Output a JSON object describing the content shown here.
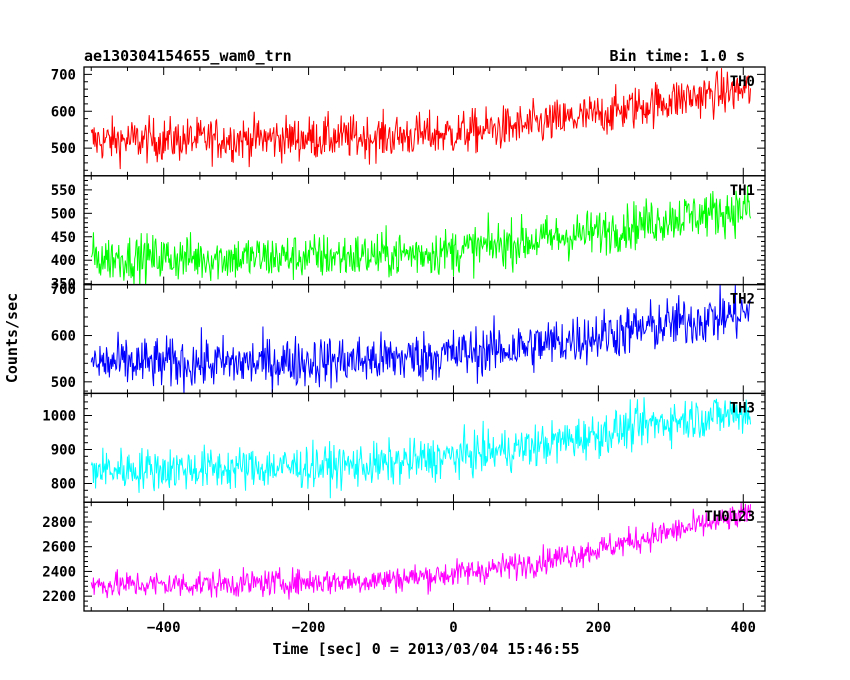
{
  "chart_data": {
    "type": "line",
    "title": "ae130304154655_wam0_trn",
    "subtitle": "Bin time: 1.0 s",
    "xlabel": "Time [sec] 0 = 2013/03/04 15:46:55",
    "ylabel": "Counts/sec",
    "xlim": [
      -510,
      430
    ],
    "xticks": [
      -400,
      -200,
      0,
      200,
      400
    ],
    "x_start": -500,
    "x_end": 410,
    "panels": [
      {
        "name": "TH0",
        "color": "#ff0000",
        "ylim": [
          425,
          720
        ],
        "yticks": [
          500,
          600,
          700
        ],
        "trend_x": [
          -500,
          -300,
          -100,
          0,
          100,
          200,
          300,
          410
        ],
        "trend_y": [
          520,
          525,
          530,
          540,
          560,
          590,
          630,
          660
        ],
        "noise": 30
      },
      {
        "name": "TH1",
        "color": "#00ff00",
        "ylim": [
          348,
          580
        ],
        "yticks": [
          350,
          400,
          450,
          500,
          550
        ],
        "trend_x": [
          -500,
          -300,
          -100,
          0,
          100,
          200,
          300,
          410
        ],
        "trend_y": [
          405,
          405,
          410,
          420,
          440,
          460,
          490,
          510
        ],
        "noise": 25
      },
      {
        "name": "TH2",
        "color": "#0000ff",
        "ylim": [
          475,
          710
        ],
        "yticks": [
          500,
          600,
          700
        ],
        "trend_x": [
          -500,
          -300,
          -100,
          0,
          100,
          200,
          300,
          410
        ],
        "trend_y": [
          540,
          540,
          548,
          560,
          575,
          600,
          625,
          650
        ],
        "noise": 28
      },
      {
        "name": "TH3",
        "color": "#00ffff",
        "ylim": [
          745,
          1065
        ],
        "yticks": [
          800,
          900,
          1000
        ],
        "trend_x": [
          -500,
          -300,
          -100,
          0,
          100,
          200,
          300,
          410
        ],
        "trend_y": [
          840,
          845,
          855,
          880,
          905,
          945,
          985,
          1010
        ],
        "noise": 32
      },
      {
        "name": "TH0123",
        "color": "#ff00ff",
        "ylim": [
          2080,
          2960
        ],
        "yticks": [
          2200,
          2400,
          2600,
          2800
        ],
        "trend_x": [
          -500,
          -300,
          -100,
          0,
          100,
          200,
          300,
          410
        ],
        "trend_y": [
          2290,
          2300,
          2330,
          2380,
          2460,
          2580,
          2720,
          2860
        ],
        "noise": 55
      }
    ]
  }
}
